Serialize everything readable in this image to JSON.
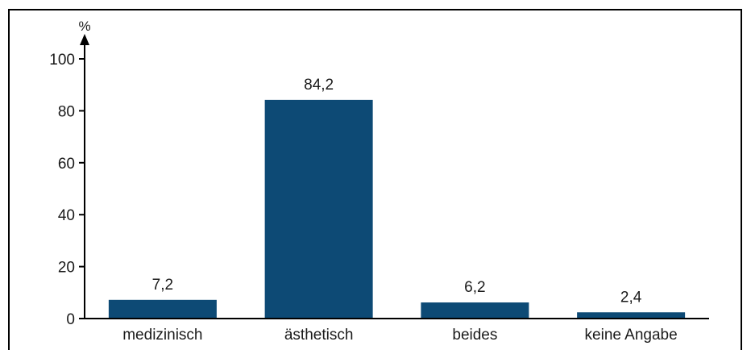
{
  "chart_data": {
    "type": "bar",
    "ylabel": "%",
    "ylim": [
      0,
      100
    ],
    "yticks": [
      "0",
      "20",
      "40",
      "60",
      "80",
      "100"
    ],
    "categories": [
      "medizinisch",
      "ästhetisch",
      "beides",
      "keine Angabe"
    ],
    "values": [
      7.2,
      84.2,
      6.2,
      2.4
    ],
    "value_labels": [
      "7,2",
      "84,2",
      "6,2",
      "2,4"
    ],
    "bar_color": "#0d4a75",
    "grid": false,
    "legend": "none"
  }
}
